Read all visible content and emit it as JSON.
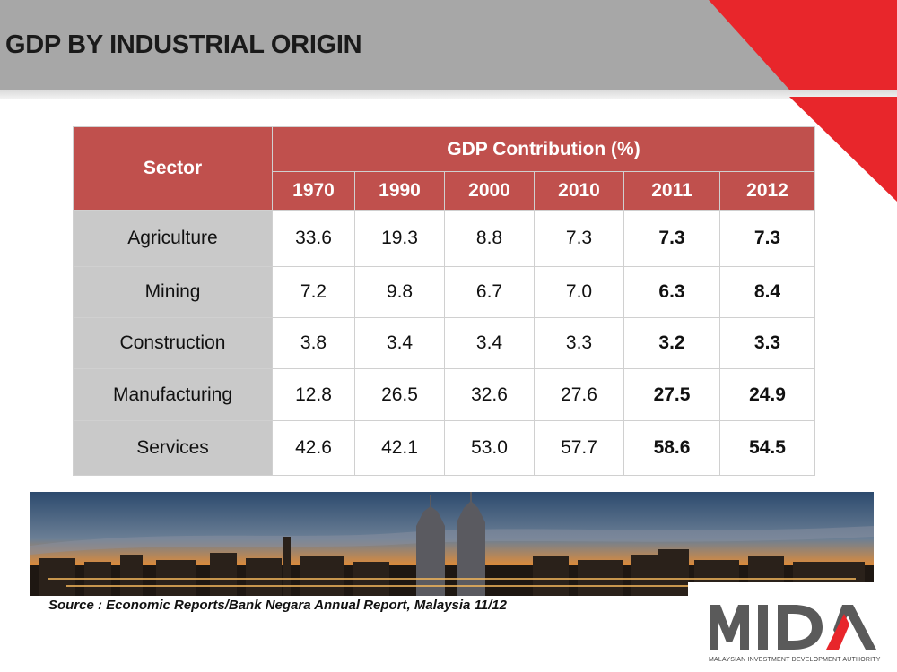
{
  "slide": {
    "title": "GDP BY INDUSTRIAL ORIGIN",
    "source": "Source : Economic Reports/Bank Negara Annual Report, Malaysia 11/12"
  },
  "table": {
    "sector_header": "Sector",
    "group_header": "GDP Contribution (%)",
    "years": [
      "1970",
      "1990",
      "2000",
      "2010",
      "2011",
      "2012"
    ],
    "rows": [
      {
        "sector": "Agriculture",
        "values": [
          "33.6",
          "19.3",
          "8.8",
          "7.3",
          "7.3",
          "7.3"
        ]
      },
      {
        "sector": "Mining",
        "values": [
          "7.2",
          "9.8",
          "6.7",
          "7.0",
          "6.3",
          "8.4"
        ]
      },
      {
        "sector": "Construction",
        "values": [
          "3.8",
          "3.4",
          "3.4",
          "3.3",
          "3.2",
          "3.3"
        ]
      },
      {
        "sector": "Manufacturing",
        "values": [
          "12.8",
          "26.5",
          "32.6",
          "27.6",
          "27.5",
          "24.9"
        ]
      },
      {
        "sector": "Services",
        "values": [
          "42.6",
          "42.1",
          "53.0",
          "57.7",
          "58.6",
          "54.5"
        ]
      }
    ]
  },
  "logo": {
    "wordmark": "MIDA",
    "tagline": "MALAYSIAN INVESTMENT DEVELOPMENT AUTHORITY"
  },
  "colors": {
    "header_gray": "#a7a7a7",
    "accent_red": "#c0504d",
    "corner_red": "#e8262b",
    "label_gray": "#c9c9c9"
  }
}
